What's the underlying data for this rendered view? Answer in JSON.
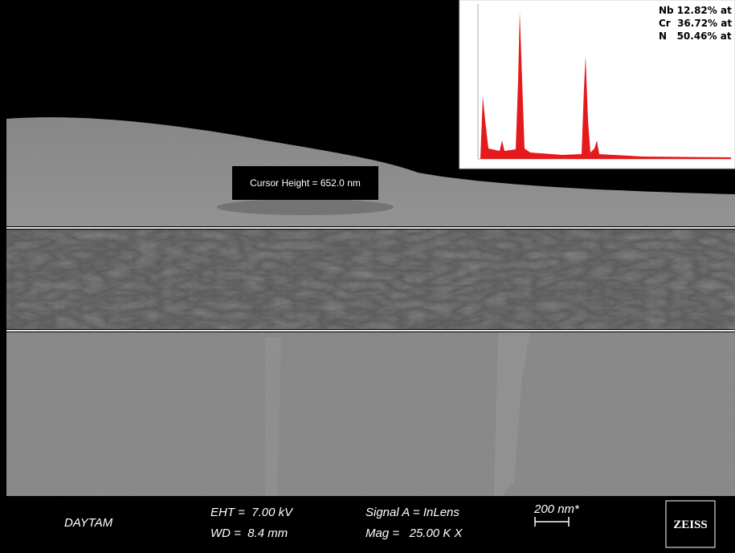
{
  "overlay": {
    "cursor_label": "Cursor Height = 652.0 nm"
  },
  "eds_inset": {
    "composition": [
      "Nb 12.82% at",
      "Cr  36.72% at",
      "N   50.46% at"
    ]
  },
  "info_bar": {
    "operator": "DAYTAM",
    "eht": "EHT =  7.00 kV",
    "wd": "WD =  8.4 mm",
    "signal": "Signal A = InLens",
    "mag": "Mag =   25.00 K X",
    "scale_bar": "200 nm*",
    "logo": "ZEISS"
  }
}
